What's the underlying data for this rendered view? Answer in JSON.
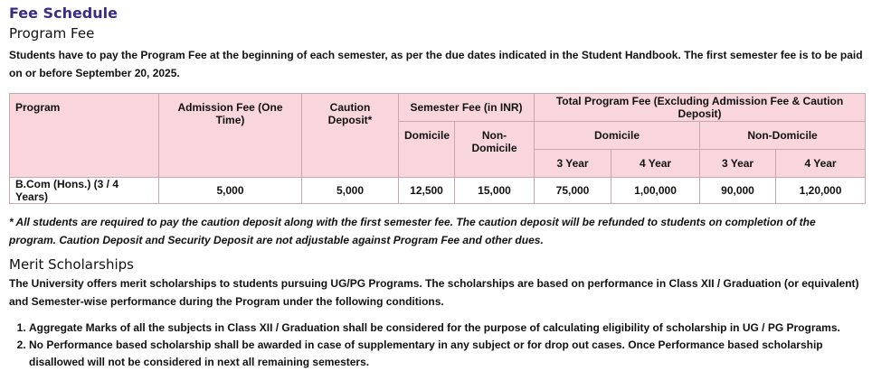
{
  "title": "Fee Schedule",
  "program_fee": {
    "heading": "Program Fee",
    "intro": "Students have to pay the Program Fee at the beginning of each semester, as per the due dates indicated in the Student Handbook. The first semester fee is to be paid on or before September 20, 2025.",
    "table": {
      "headers": {
        "program": "Program",
        "admission": "Admission Fee (One Time)",
        "caution": "Caution Deposit*",
        "semester": "Semester Fee (in INR)",
        "total": "Total Program Fee (Excluding Admission Fee & Caution Deposit)",
        "sem_domicile": "Domicile",
        "sem_non_domicile": "Non-Domicile",
        "tot_domicile": "Domicile",
        "tot_non_domicile": "Non-Domicile",
        "dom_3": "3 Year",
        "dom_4": "4 Year",
        "non_3": "3 Year",
        "non_4": "4 Year"
      },
      "rows": [
        {
          "program": "B.Com (Hons.) (3 / 4 Years)",
          "admission": "5,000",
          "caution": "5,000",
          "sem_domicile": "12,500",
          "sem_non_domicile": "15,000",
          "dom_3": "75,000",
          "dom_4": "1,00,000",
          "non_3": "90,000",
          "non_4": "1,20,000"
        }
      ]
    },
    "note": "* All students are required to pay the caution deposit along with the first semester fee. The caution deposit will be refunded to students on completion of the program. Caution Deposit and Security Deposit are not adjustable against Program Fee and other dues."
  },
  "merit": {
    "heading": "Merit Scholarships",
    "intro": "The University offers merit scholarships to students pursuing UG/PG Programs. The scholarships are based on performance in Class XII / Graduation (or equivalent) and Semester-wise performance during the Program under the following conditions.",
    "conditions": [
      "Aggregate Marks of all the subjects in Class XII / Graduation shall be considered for the purpose of calculating eligibility of scholarship in UG / PG Programs.",
      "No Performance based scholarship shall be awarded in case of supplementary in any subject or for drop out cases. Once Performance based scholarship disallowed will not be considered in next all remaining semesters."
    ]
  }
}
